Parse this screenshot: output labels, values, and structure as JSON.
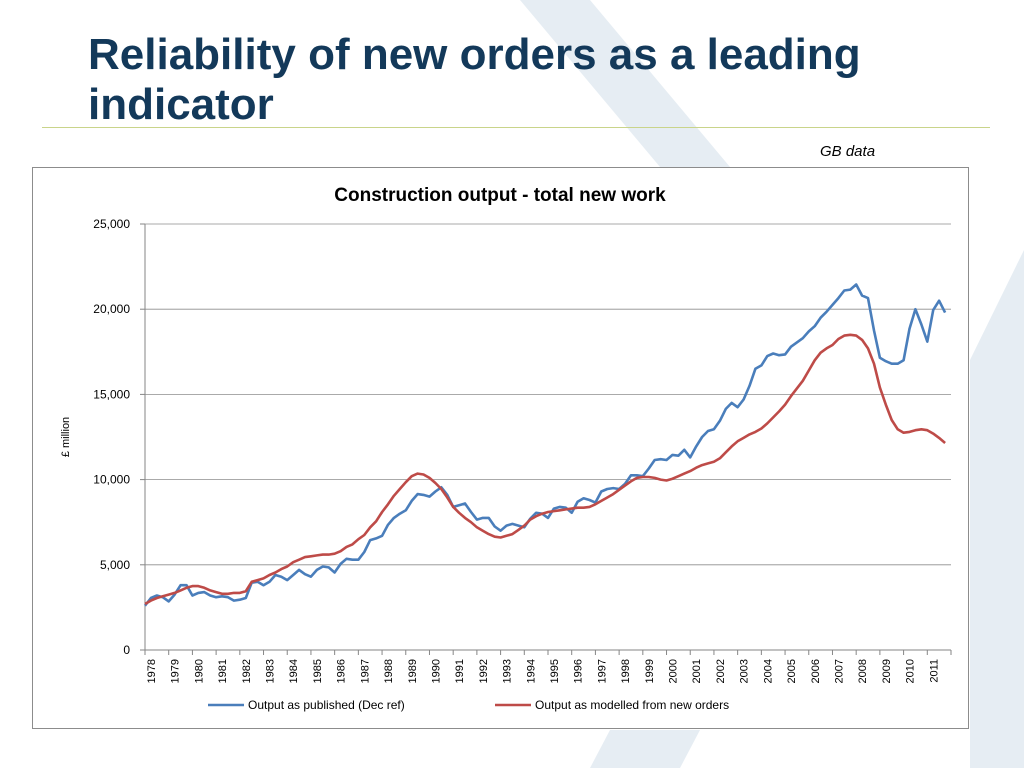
{
  "slide": {
    "title": "Reliability of new orders as a leading indicator",
    "note": "GB data"
  },
  "colors": {
    "title": "#13395a",
    "rule": "#c9d48a",
    "decor": "#e6edf3",
    "series_published": "#4a7ebb",
    "series_modelled": "#be4b48"
  },
  "chart_data": {
    "type": "line",
    "title": "Construction output - total new work",
    "ylabel": "£ million",
    "xlabel": "",
    "ylim": [
      0,
      25000
    ],
    "yticks": [
      {
        "v": 0,
        "label": "0"
      },
      {
        "v": 5000,
        "label": "5,000"
      },
      {
        "v": 10000,
        "label": "10,000"
      },
      {
        "v": 15000,
        "label": "15,000"
      },
      {
        "v": 20000,
        "label": "20,000"
      },
      {
        "v": 25000,
        "label": "25,000"
      }
    ],
    "grid": true,
    "legend": "bottom",
    "x_start": 1978,
    "x_labels": [
      "1978",
      "1979",
      "1980",
      "1981",
      "1982",
      "1983",
      "1984",
      "1985",
      "1986",
      "1987",
      "1988",
      "1989",
      "1990",
      "1991",
      "1992",
      "1993",
      "1994",
      "1995",
      "1996",
      "1997",
      "1998",
      "1999",
      "2000",
      "2001",
      "2002",
      "2003",
      "2004",
      "2005",
      "2006",
      "2007",
      "2008",
      "2009",
      "2010",
      "2011"
    ],
    "series": [
      {
        "name": "Output as published (Dec ref)",
        "color": "#4a7ebb",
        "points": [
          [
            1978.0,
            2600
          ],
          [
            1978.25,
            3050
          ],
          [
            1978.5,
            3200
          ],
          [
            1978.75,
            3100
          ],
          [
            1979.0,
            2850
          ],
          [
            1979.25,
            3250
          ],
          [
            1979.5,
            3800
          ],
          [
            1979.75,
            3800
          ],
          [
            1980.0,
            3200
          ],
          [
            1980.25,
            3350
          ],
          [
            1980.5,
            3400
          ],
          [
            1980.75,
            3200
          ],
          [
            1981.0,
            3100
          ],
          [
            1981.25,
            3150
          ],
          [
            1981.5,
            3100
          ],
          [
            1981.75,
            2900
          ],
          [
            1982.0,
            2950
          ],
          [
            1982.25,
            3050
          ],
          [
            1982.5,
            3950
          ],
          [
            1982.75,
            4000
          ],
          [
            1983.0,
            3800
          ],
          [
            1983.25,
            4000
          ],
          [
            1983.5,
            4400
          ],
          [
            1983.75,
            4300
          ],
          [
            1984.0,
            4100
          ],
          [
            1984.25,
            4400
          ],
          [
            1984.5,
            4700
          ],
          [
            1984.75,
            4450
          ],
          [
            1985.0,
            4300
          ],
          [
            1985.25,
            4700
          ],
          [
            1985.5,
            4900
          ],
          [
            1985.75,
            4850
          ],
          [
            1986.0,
            4550
          ],
          [
            1986.25,
            5050
          ],
          [
            1986.5,
            5350
          ],
          [
            1986.75,
            5300
          ],
          [
            1987.0,
            5300
          ],
          [
            1987.25,
            5750
          ],
          [
            1987.5,
            6450
          ],
          [
            1987.75,
            6550
          ],
          [
            1988.0,
            6700
          ],
          [
            1988.25,
            7350
          ],
          [
            1988.5,
            7750
          ],
          [
            1988.75,
            8000
          ],
          [
            1989.0,
            8200
          ],
          [
            1989.25,
            8750
          ],
          [
            1989.5,
            9150
          ],
          [
            1989.75,
            9100
          ],
          [
            1990.0,
            9000
          ],
          [
            1990.25,
            9300
          ],
          [
            1990.5,
            9550
          ],
          [
            1990.75,
            9100
          ],
          [
            1991.0,
            8400
          ],
          [
            1991.25,
            8500
          ],
          [
            1991.5,
            8600
          ],
          [
            1991.75,
            8100
          ],
          [
            1992.0,
            7650
          ],
          [
            1992.25,
            7750
          ],
          [
            1992.5,
            7750
          ],
          [
            1992.75,
            7250
          ],
          [
            1993.0,
            7000
          ],
          [
            1993.25,
            7300
          ],
          [
            1993.5,
            7400
          ],
          [
            1993.75,
            7300
          ],
          [
            1994.0,
            7200
          ],
          [
            1994.25,
            7700
          ],
          [
            1994.5,
            8050
          ],
          [
            1994.75,
            8000
          ],
          [
            1995.0,
            7750
          ],
          [
            1995.25,
            8300
          ],
          [
            1995.5,
            8400
          ],
          [
            1995.75,
            8350
          ],
          [
            1996.0,
            8050
          ],
          [
            1996.25,
            8700
          ],
          [
            1996.5,
            8900
          ],
          [
            1996.75,
            8800
          ],
          [
            1997.0,
            8650
          ],
          [
            1997.25,
            9300
          ],
          [
            1997.5,
            9450
          ],
          [
            1997.75,
            9500
          ],
          [
            1998.0,
            9450
          ],
          [
            1998.25,
            9750
          ],
          [
            1998.5,
            10250
          ],
          [
            1998.75,
            10250
          ],
          [
            1999.0,
            10200
          ],
          [
            1999.25,
            10650
          ],
          [
            1999.5,
            11150
          ],
          [
            1999.75,
            11200
          ],
          [
            2000.0,
            11150
          ],
          [
            2000.25,
            11450
          ],
          [
            2000.5,
            11400
          ],
          [
            2000.75,
            11750
          ],
          [
            2001.0,
            11300
          ],
          [
            2001.25,
            11950
          ],
          [
            2001.5,
            12500
          ],
          [
            2001.75,
            12850
          ],
          [
            2002.0,
            12950
          ],
          [
            2002.25,
            13450
          ],
          [
            2002.5,
            14150
          ],
          [
            2002.75,
            14500
          ],
          [
            2003.0,
            14250
          ],
          [
            2003.25,
            14700
          ],
          [
            2003.5,
            15500
          ],
          [
            2003.75,
            16500
          ],
          [
            2004.0,
            16700
          ],
          [
            2004.25,
            17250
          ],
          [
            2004.5,
            17400
          ],
          [
            2004.75,
            17300
          ],
          [
            2005.0,
            17350
          ],
          [
            2005.25,
            17800
          ],
          [
            2005.5,
            18050
          ],
          [
            2005.75,
            18300
          ],
          [
            2006.0,
            18700
          ],
          [
            2006.25,
            19000
          ],
          [
            2006.5,
            19500
          ],
          [
            2006.75,
            19850
          ],
          [
            2007.0,
            20250
          ],
          [
            2007.25,
            20650
          ],
          [
            2007.5,
            21100
          ],
          [
            2007.75,
            21150
          ],
          [
            2008.0,
            21450
          ],
          [
            2008.25,
            20800
          ],
          [
            2008.5,
            20650
          ],
          [
            2008.75,
            18750
          ],
          [
            2009.0,
            17150
          ],
          [
            2009.25,
            16950
          ],
          [
            2009.5,
            16800
          ],
          [
            2009.75,
            16800
          ],
          [
            2010.0,
            17000
          ],
          [
            2010.25,
            18850
          ],
          [
            2010.5,
            20000
          ],
          [
            2010.75,
            19100
          ],
          [
            2011.0,
            18100
          ],
          [
            2011.25,
            19950
          ],
          [
            2011.5,
            20500
          ],
          [
            2011.75,
            19800
          ]
        ]
      },
      {
        "name": "Output as modelled from new orders",
        "color": "#be4b48",
        "points": [
          [
            1978.0,
            2700
          ],
          [
            1978.25,
            2900
          ],
          [
            1978.5,
            3050
          ],
          [
            1978.75,
            3150
          ],
          [
            1979.0,
            3250
          ],
          [
            1979.25,
            3350
          ],
          [
            1979.5,
            3500
          ],
          [
            1979.75,
            3650
          ],
          [
            1980.0,
            3750
          ],
          [
            1980.25,
            3750
          ],
          [
            1980.5,
            3650
          ],
          [
            1980.75,
            3500
          ],
          [
            1981.0,
            3400
          ],
          [
            1981.25,
            3300
          ],
          [
            1981.5,
            3300
          ],
          [
            1981.75,
            3350
          ],
          [
            1982.0,
            3350
          ],
          [
            1982.25,
            3450
          ],
          [
            1982.5,
            4000
          ],
          [
            1982.75,
            4100
          ],
          [
            1983.0,
            4200
          ],
          [
            1983.25,
            4400
          ],
          [
            1983.5,
            4550
          ],
          [
            1983.75,
            4750
          ],
          [
            1984.0,
            4900
          ],
          [
            1984.25,
            5150
          ],
          [
            1984.5,
            5300
          ],
          [
            1984.75,
            5450
          ],
          [
            1985.0,
            5500
          ],
          [
            1985.25,
            5550
          ],
          [
            1985.5,
            5600
          ],
          [
            1985.75,
            5600
          ],
          [
            1986.0,
            5650
          ],
          [
            1986.25,
            5800
          ],
          [
            1986.5,
            6050
          ],
          [
            1986.75,
            6200
          ],
          [
            1987.0,
            6500
          ],
          [
            1987.25,
            6750
          ],
          [
            1987.5,
            7200
          ],
          [
            1987.75,
            7550
          ],
          [
            1988.0,
            8100
          ],
          [
            1988.25,
            8550
          ],
          [
            1988.5,
            9050
          ],
          [
            1988.75,
            9450
          ],
          [
            1989.0,
            9850
          ],
          [
            1989.25,
            10200
          ],
          [
            1989.5,
            10350
          ],
          [
            1989.75,
            10300
          ],
          [
            1990.0,
            10100
          ],
          [
            1990.25,
            9800
          ],
          [
            1990.5,
            9450
          ],
          [
            1990.75,
            8950
          ],
          [
            1991.0,
            8400
          ],
          [
            1991.25,
            8050
          ],
          [
            1991.5,
            7750
          ],
          [
            1991.75,
            7500
          ],
          [
            1992.0,
            7200
          ],
          [
            1992.25,
            7000
          ],
          [
            1992.5,
            6800
          ],
          [
            1992.75,
            6650
          ],
          [
            1993.0,
            6600
          ],
          [
            1993.25,
            6700
          ],
          [
            1993.5,
            6800
          ],
          [
            1993.75,
            7050
          ],
          [
            1994.0,
            7300
          ],
          [
            1994.25,
            7650
          ],
          [
            1994.5,
            7850
          ],
          [
            1994.75,
            8000
          ],
          [
            1995.0,
            8100
          ],
          [
            1995.25,
            8150
          ],
          [
            1995.5,
            8200
          ],
          [
            1995.75,
            8250
          ],
          [
            1996.0,
            8300
          ],
          [
            1996.25,
            8350
          ],
          [
            1996.5,
            8350
          ],
          [
            1996.75,
            8400
          ],
          [
            1997.0,
            8550
          ],
          [
            1997.25,
            8750
          ],
          [
            1997.5,
            8950
          ],
          [
            1997.75,
            9150
          ],
          [
            1998.0,
            9400
          ],
          [
            1998.25,
            9650
          ],
          [
            1998.5,
            9900
          ],
          [
            1998.75,
            10100
          ],
          [
            1999.0,
            10150
          ],
          [
            1999.25,
            10150
          ],
          [
            1999.5,
            10100
          ],
          [
            1999.75,
            10000
          ],
          [
            2000.0,
            9950
          ],
          [
            2000.25,
            10050
          ],
          [
            2000.5,
            10200
          ],
          [
            2000.75,
            10350
          ],
          [
            2001.0,
            10500
          ],
          [
            2001.25,
            10700
          ],
          [
            2001.5,
            10850
          ],
          [
            2001.75,
            10950
          ],
          [
            2002.0,
            11050
          ],
          [
            2002.25,
            11250
          ],
          [
            2002.5,
            11600
          ],
          [
            2002.75,
            11950
          ],
          [
            2003.0,
            12250
          ],
          [
            2003.25,
            12450
          ],
          [
            2003.5,
            12650
          ],
          [
            2003.75,
            12800
          ],
          [
            2004.0,
            13000
          ],
          [
            2004.25,
            13300
          ],
          [
            2004.5,
            13650
          ],
          [
            2004.75,
            14000
          ],
          [
            2005.0,
            14400
          ],
          [
            2005.25,
            14900
          ],
          [
            2005.5,
            15350
          ],
          [
            2005.75,
            15800
          ],
          [
            2006.0,
            16400
          ],
          [
            2006.25,
            17000
          ],
          [
            2006.5,
            17450
          ],
          [
            2006.75,
            17700
          ],
          [
            2007.0,
            17900
          ],
          [
            2007.25,
            18250
          ],
          [
            2007.5,
            18450
          ],
          [
            2007.75,
            18500
          ],
          [
            2008.0,
            18450
          ],
          [
            2008.25,
            18200
          ],
          [
            2008.5,
            17700
          ],
          [
            2008.75,
            16800
          ],
          [
            2009.0,
            15400
          ],
          [
            2009.25,
            14400
          ],
          [
            2009.5,
            13500
          ],
          [
            2009.75,
            12950
          ],
          [
            2010.0,
            12750
          ],
          [
            2010.25,
            12800
          ],
          [
            2010.5,
            12900
          ],
          [
            2010.75,
            12950
          ],
          [
            2011.0,
            12900
          ],
          [
            2011.25,
            12700
          ],
          [
            2011.5,
            12450
          ],
          [
            2011.75,
            12150
          ]
        ]
      }
    ]
  }
}
